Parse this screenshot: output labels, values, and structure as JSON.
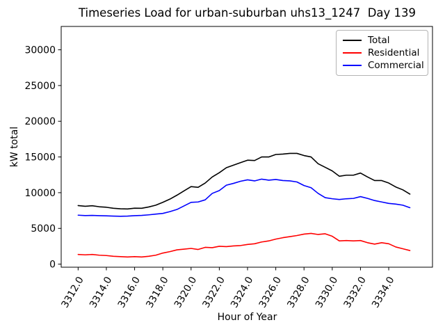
{
  "figure": {
    "background_color": "#ffffff",
    "frame_color": "#000000"
  },
  "chart_data": {
    "type": "line",
    "title": "Timeseries Load for urban-suburban uhs13_1247  Day 139",
    "xlabel": "Hour of Year",
    "ylabel": "kW total",
    "grid": false,
    "legend_position": "upper right",
    "xlim": [
      3310.8,
      3337.1
    ],
    "ylim": [
      -430,
      33270
    ],
    "x_tick_values": [
      3312,
      3314,
      3316,
      3318,
      3320,
      3322,
      3324,
      3326,
      3328,
      3330,
      3332,
      3334
    ],
    "x_tick_labels": [
      "3312.0",
      "3314.0",
      "3316.0",
      "3318.0",
      "3320.0",
      "3322.0",
      "3324.0",
      "3326.0",
      "3328.0",
      "3330.0",
      "3332.0",
      "3334.0"
    ],
    "y_tick_values": [
      0,
      5000,
      10000,
      15000,
      20000,
      25000,
      30000
    ],
    "y_tick_labels": [
      "0",
      "5000",
      "10000",
      "15000",
      "20000",
      "25000",
      "30000"
    ],
    "x": [
      3312.0,
      3312.5,
      3313.0,
      3313.5,
      3314.0,
      3314.5,
      3315.0,
      3315.5,
      3316.0,
      3316.5,
      3317.0,
      3317.5,
      3318.0,
      3318.5,
      3319.0,
      3319.5,
      3320.0,
      3320.5,
      3321.0,
      3321.5,
      3322.0,
      3322.5,
      3323.0,
      3323.5,
      3324.0,
      3324.5,
      3325.0,
      3325.5,
      3326.0,
      3326.5,
      3327.0,
      3327.5,
      3328.0,
      3328.5,
      3329.0,
      3329.5,
      3330.0,
      3330.5,
      3331.0,
      3331.5,
      3332.0,
      3332.5,
      3333.0,
      3333.5,
      3334.0,
      3334.5,
      3335.0,
      3335.5
    ],
    "series": [
      {
        "name": "Total",
        "color": "#000000",
        "values": [
          8200,
          8100,
          8170,
          8030,
          7960,
          7820,
          7750,
          7720,
          7830,
          7820,
          8000,
          8250,
          8650,
          9100,
          9650,
          10250,
          10850,
          10750,
          11350,
          12200,
          12800,
          13500,
          13850,
          14200,
          14550,
          14500,
          15000,
          15000,
          15350,
          15400,
          15500,
          15500,
          15200,
          15000,
          14050,
          13550,
          13050,
          12300,
          12450,
          12450,
          12750,
          12200,
          11700,
          11700,
          11350,
          10800,
          10400,
          9800
        ]
      },
      {
        "name": "Residential",
        "color": "#ff0000",
        "values": [
          1350,
          1300,
          1350,
          1250,
          1200,
          1100,
          1050,
          1000,
          1050,
          1000,
          1100,
          1250,
          1550,
          1750,
          2000,
          2100,
          2200,
          2050,
          2350,
          2300,
          2500,
          2450,
          2550,
          2600,
          2750,
          2850,
          3100,
          3250,
          3500,
          3700,
          3850,
          4000,
          4200,
          4300,
          4150,
          4250,
          3900,
          3250,
          3300,
          3250,
          3300,
          3000,
          2800,
          3000,
          2850,
          2400,
          2150,
          1900
        ]
      },
      {
        "name": "Commercial",
        "color": "#0000ff",
        "values": [
          6850,
          6800,
          6820,
          6780,
          6760,
          6720,
          6700,
          6720,
          6780,
          6820,
          6900,
          7000,
          7100,
          7350,
          7650,
          8150,
          8650,
          8700,
          9000,
          9900,
          10300,
          11050,
          11300,
          11600,
          11800,
          11650,
          11900,
          11750,
          11850,
          11700,
          11650,
          11500,
          11000,
          10700,
          9900,
          9300,
          9150,
          9050,
          9150,
          9200,
          9450,
          9200,
          8900,
          8700,
          8500,
          8400,
          8250,
          7900
        ]
      }
    ]
  }
}
